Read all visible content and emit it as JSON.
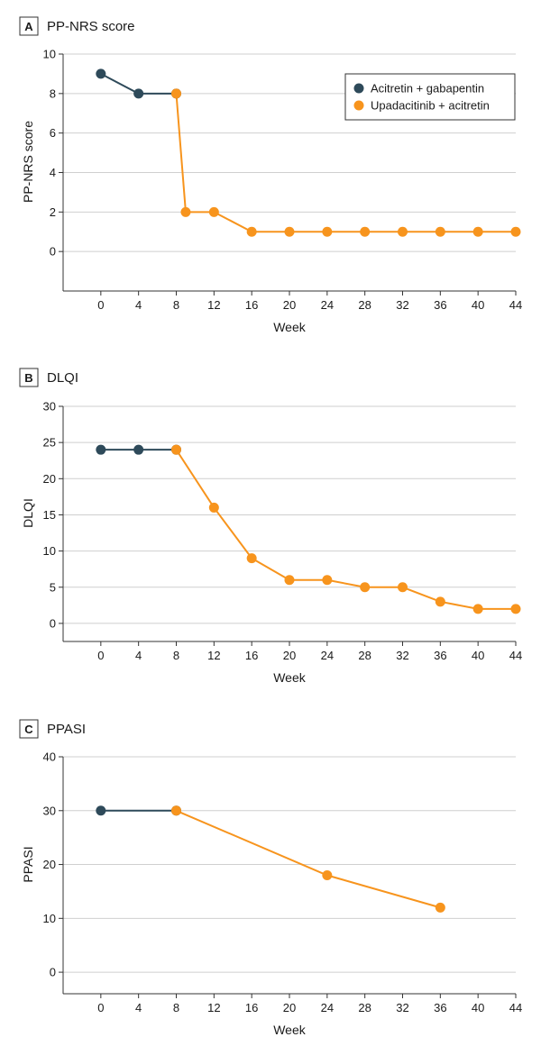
{
  "colors": {
    "series_a": "#2e4a5a",
    "series_b": "#f7941d",
    "grid": "#cfcfcf",
    "axis": "#333333"
  },
  "chart_data": [
    {
      "type": "line",
      "panel": "A",
      "title": "PP-NRS score",
      "xlabel": "Week",
      "ylabel": "PP-NRS score",
      "xlim": [
        -4,
        44
      ],
      "ylim": [
        -2,
        10
      ],
      "xticks": [
        0,
        4,
        8,
        12,
        16,
        20,
        24,
        28,
        32,
        36,
        40,
        44
      ],
      "yticks": [
        0,
        2,
        4,
        6,
        8,
        10
      ],
      "grid": true,
      "legend": {
        "position": "top-right",
        "entries": [
          "Acitretin + gabapentin",
          "Upadacitinib + acitretin"
        ]
      },
      "series": [
        {
          "name": "Acitretin + gabapentin",
          "color": "#2e4a5a",
          "x": [
            0,
            4,
            8
          ],
          "y": [
            9,
            8,
            8
          ]
        },
        {
          "name": "Upadacitinib + acitretin",
          "color": "#f7941d",
          "x": [
            8,
            9,
            12,
            16,
            20,
            24,
            28,
            32,
            36,
            40,
            44
          ],
          "y": [
            8,
            2,
            2,
            1,
            1,
            1,
            1,
            1,
            1,
            1,
            1
          ]
        }
      ]
    },
    {
      "type": "line",
      "panel": "B",
      "title": "DLQI",
      "xlabel": "Week",
      "ylabel": "DLQI",
      "xlim": [
        -4,
        44
      ],
      "ylim": [
        -2.5,
        30
      ],
      "xticks": [
        0,
        4,
        8,
        12,
        16,
        20,
        24,
        28,
        32,
        36,
        40,
        44
      ],
      "yticks": [
        0,
        5,
        10,
        15,
        20,
        25,
        30
      ],
      "grid": true,
      "series": [
        {
          "name": "Acitretin + gabapentin",
          "color": "#2e4a5a",
          "x": [
            0,
            4,
            8
          ],
          "y": [
            24,
            24,
            24
          ]
        },
        {
          "name": "Upadacitinib + acitretin",
          "color": "#f7941d",
          "x": [
            8,
            12,
            16,
            20,
            24,
            28,
            32,
            36,
            40,
            44
          ],
          "y": [
            24,
            16,
            9,
            6,
            6,
            5,
            5,
            3,
            2,
            2
          ]
        }
      ]
    },
    {
      "type": "line",
      "panel": "C",
      "title": "PPASI",
      "xlabel": "Week",
      "ylabel": "PPASI",
      "xlim": [
        -4,
        44
      ],
      "ylim": [
        -4,
        40
      ],
      "xticks": [
        0,
        4,
        8,
        12,
        16,
        20,
        24,
        28,
        32,
        36,
        40,
        44
      ],
      "yticks": [
        0,
        10,
        20,
        30,
        40
      ],
      "grid": true,
      "series": [
        {
          "name": "Acitretin + gabapentin",
          "color": "#2e4a5a",
          "x": [
            0,
            8
          ],
          "y": [
            30,
            30
          ]
        },
        {
          "name": "Upadacitinib + acitretin",
          "color": "#f7941d",
          "x": [
            8,
            24,
            36
          ],
          "y": [
            30,
            18,
            12
          ]
        }
      ]
    }
  ]
}
